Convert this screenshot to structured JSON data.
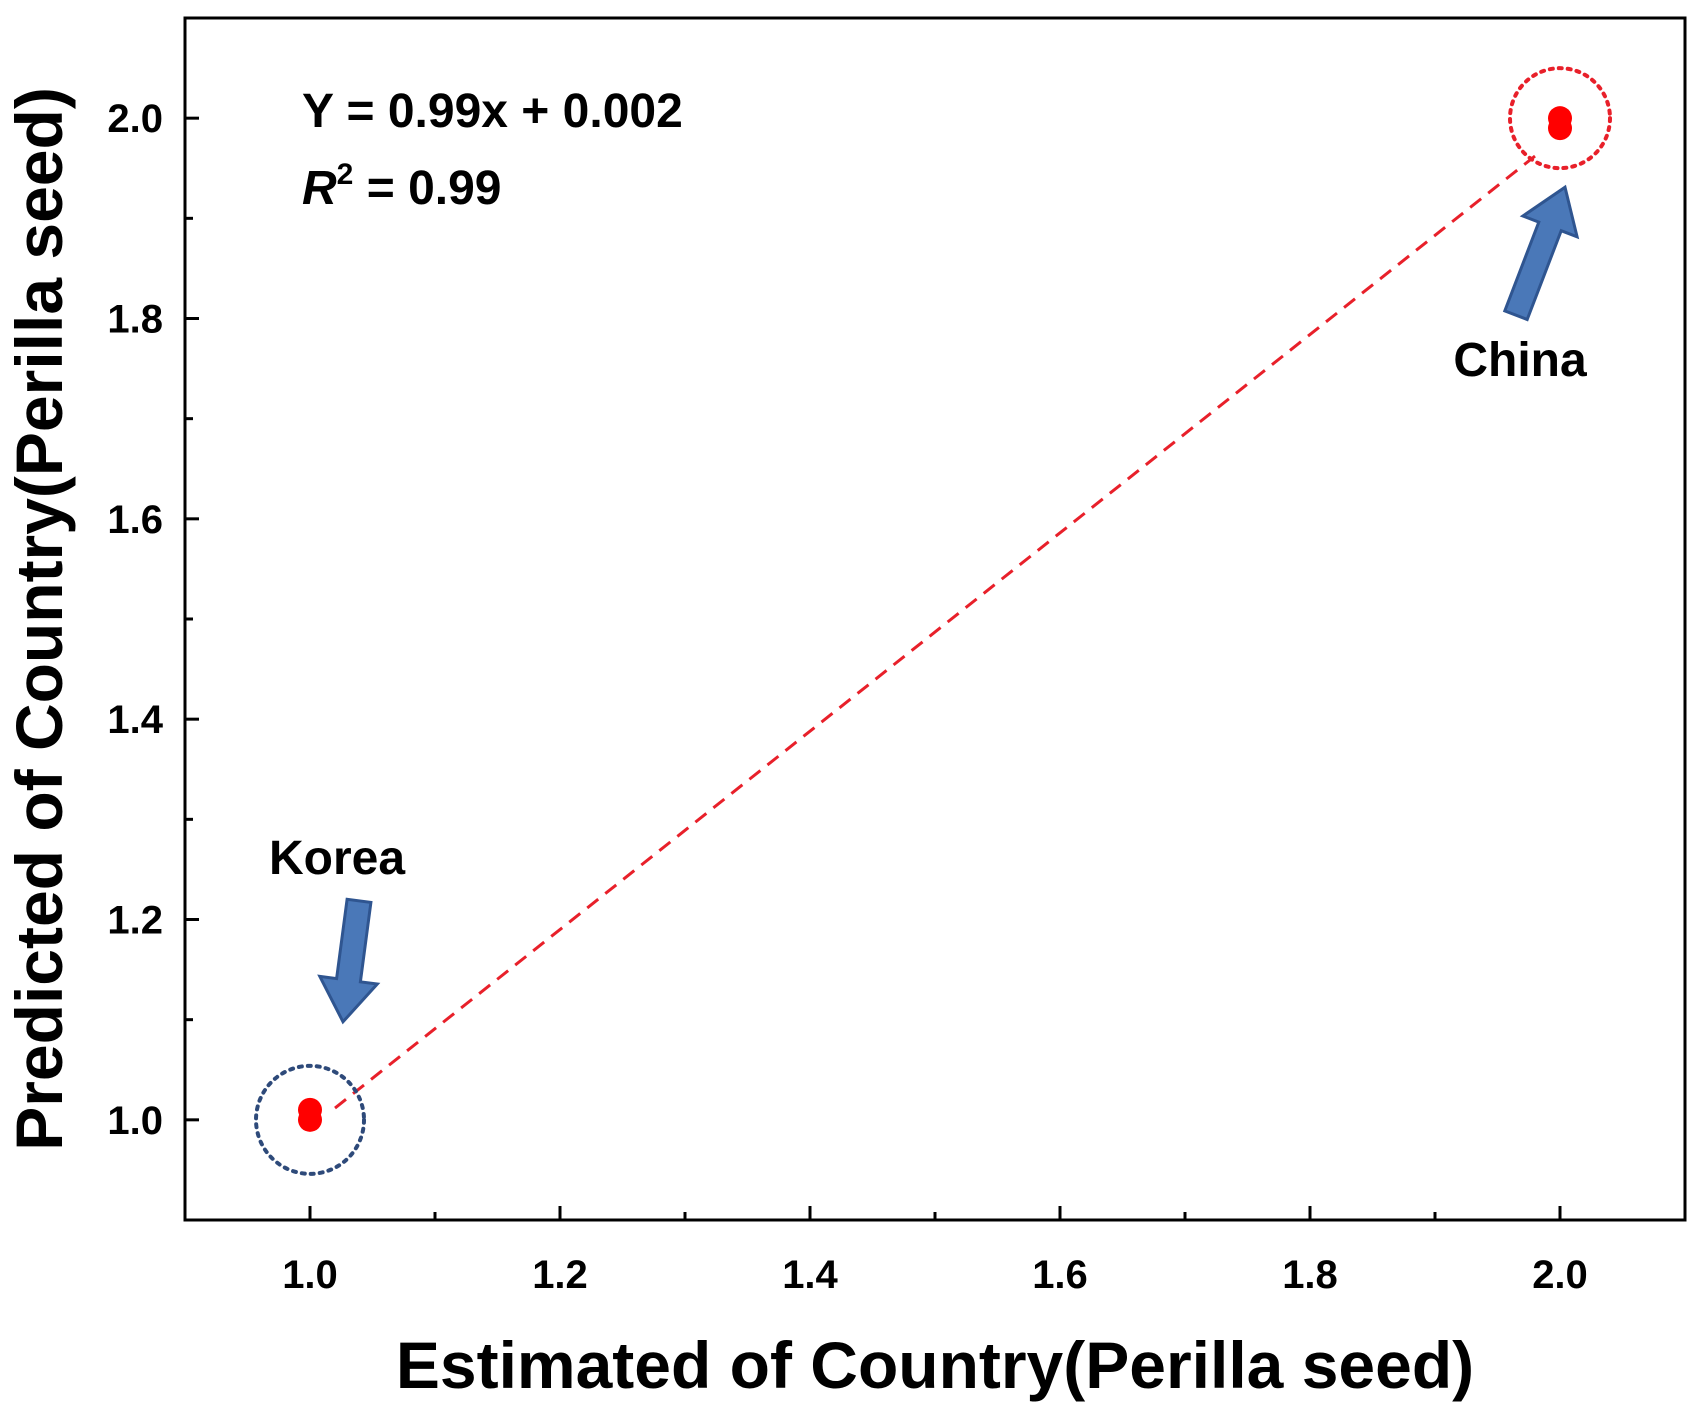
{
  "chart_data": {
    "type": "scatter",
    "xlabel": "Estimated of Country(Perilla seed)",
    "ylabel": "Predicted of Country(Perilla seed)",
    "xlim": [
      0.9,
      2.1
    ],
    "ylim": [
      0.9,
      2.1
    ],
    "x_ticks": [
      1.0,
      1.2,
      1.4,
      1.6,
      1.8,
      2.0
    ],
    "y_ticks": [
      1.0,
      1.2,
      1.4,
      1.6,
      1.8,
      2.0
    ],
    "x_tick_labels": [
      "1.0",
      "1.2",
      "1.4",
      "1.6",
      "1.8",
      "2.0"
    ],
    "y_tick_labels": [
      "1.0",
      "1.2",
      "1.4",
      "1.6",
      "1.8",
      "2.0"
    ],
    "points": [
      {
        "x": 1.0,
        "y": 1.0
      },
      {
        "x": 1.0,
        "y": 1.01
      },
      {
        "x": 2.0,
        "y": 1.99
      },
      {
        "x": 2.0,
        "y": 2.0
      }
    ],
    "fit_line": {
      "slope": 0.99,
      "intercept": 0.002,
      "x_range": [
        1.0,
        2.0
      ],
      "color": "#e8202a",
      "style": "dashed"
    },
    "equation": "Y = 0.99x + 0.002",
    "r2_letter": "R",
    "r2_exp": "2",
    "r2_rest": " = 0.99",
    "annotations": [
      {
        "label": "Korea",
        "x": 1.0,
        "y": 1.0,
        "circle_color": "#2e4a7a"
      },
      {
        "label": "China",
        "x": 2.0,
        "y": 2.0,
        "circle_color": "#e8202a"
      }
    ],
    "point_color": "#ff0000",
    "arrow_color": "#4a78b8",
    "grid": false
  }
}
